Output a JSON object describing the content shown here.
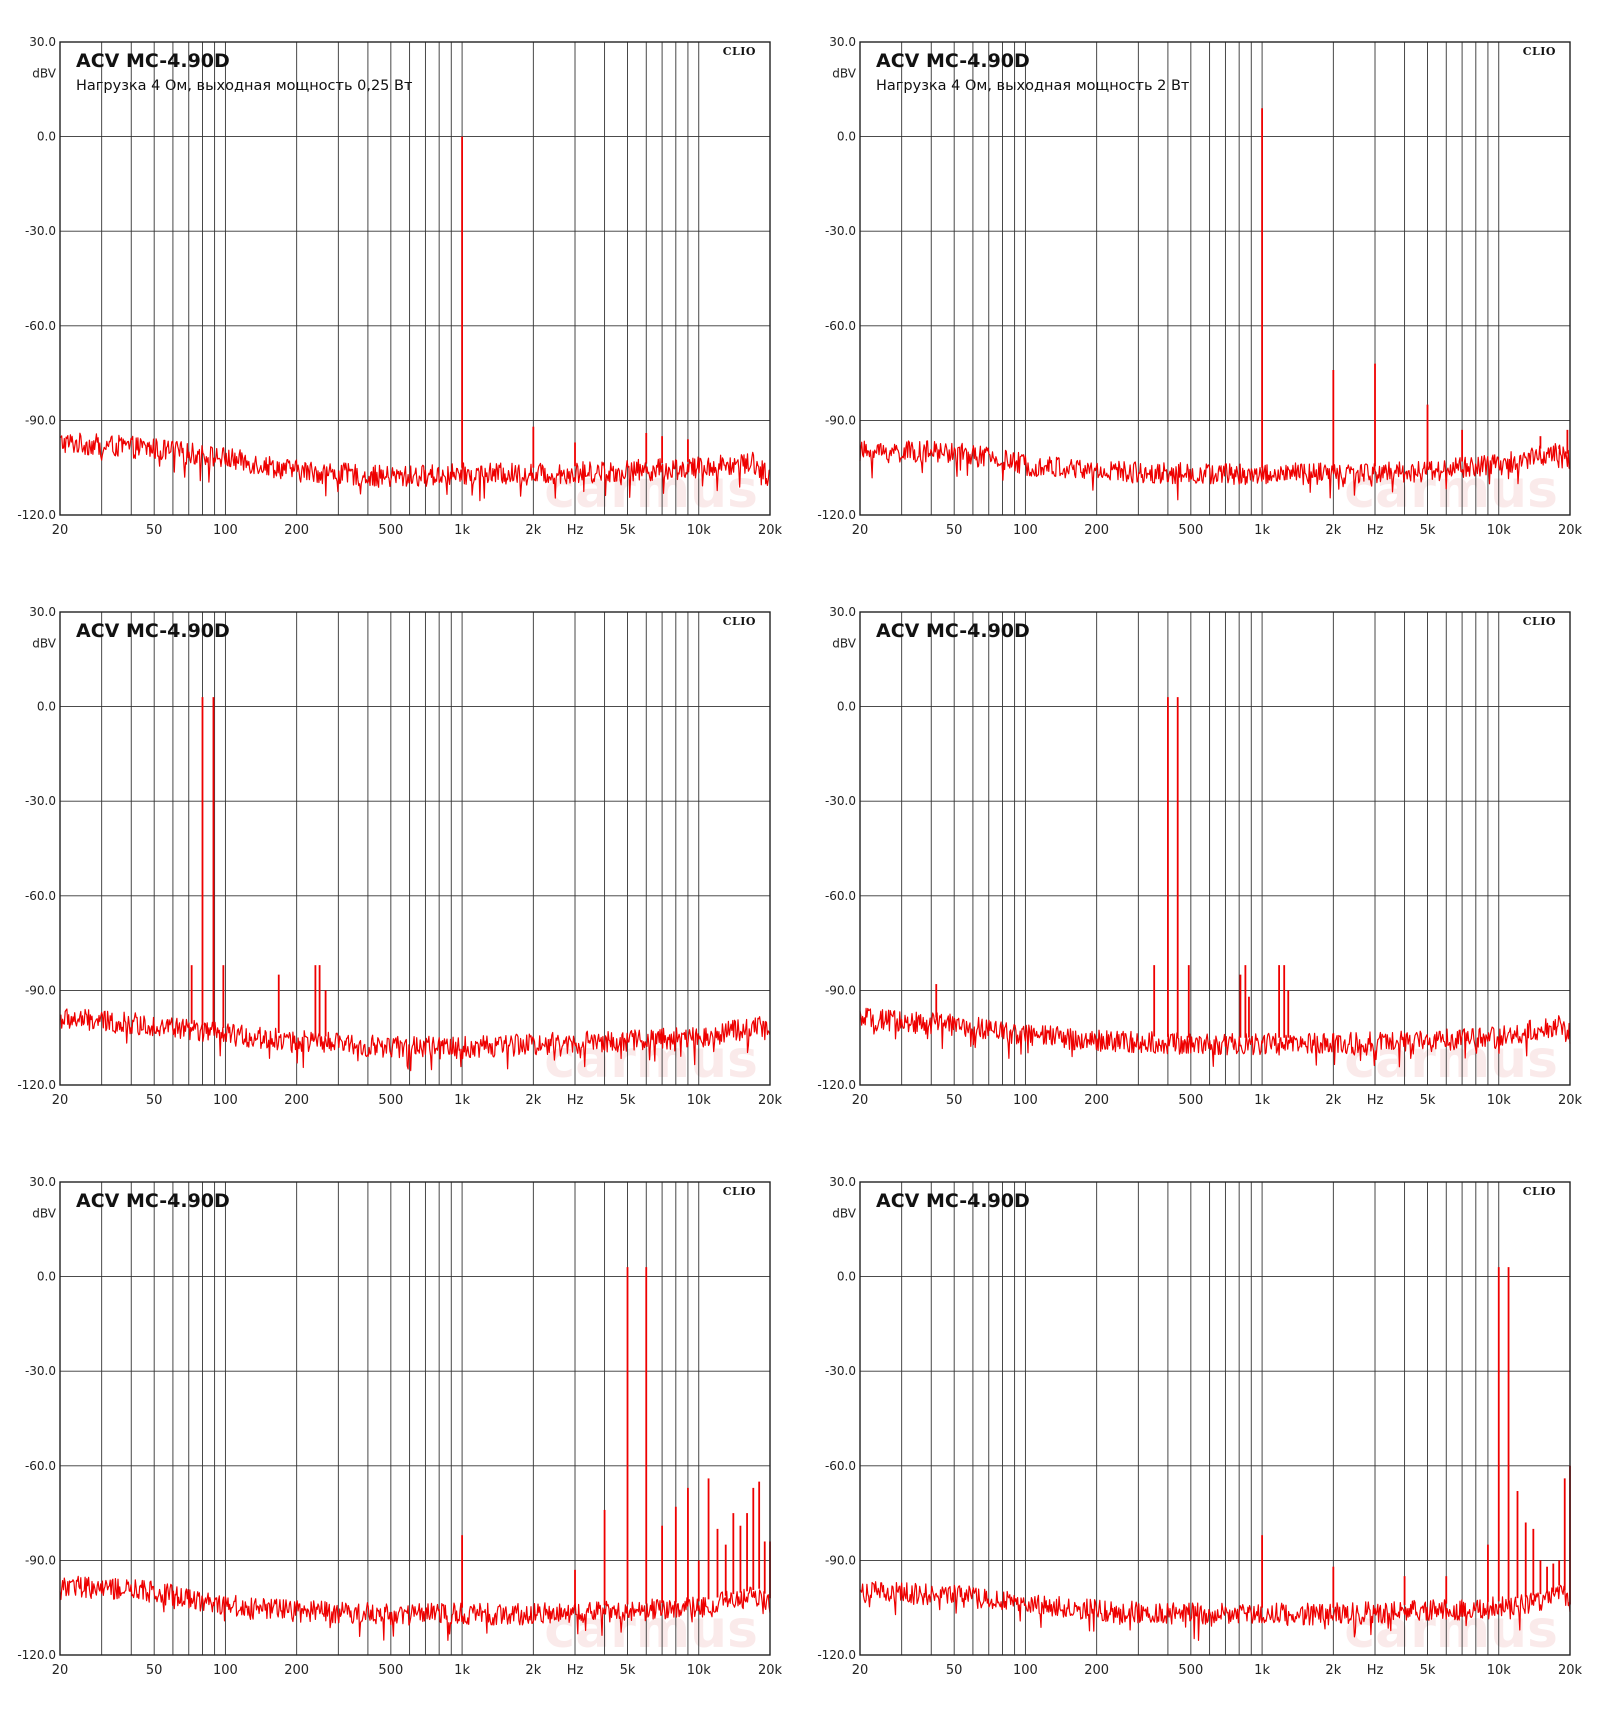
{
  "watermark": "carmus",
  "chart_data": [
    {
      "type": "line",
      "title": "ACV MC-4.90D",
      "subtitle": "Нагрузка 4 Ом, выходная мощность 0,25 Вт",
      "brand": "CLIO",
      "ylabel": "dBV",
      "xlabel": "Hz",
      "xscale": "log",
      "xlim": [
        20,
        20000
      ],
      "ylim": [
        -120,
        30
      ],
      "yticks": [
        "30.0",
        "0.0",
        "-30.0",
        "-60.0",
        "-90.0",
        "-120.0"
      ],
      "xticks": [
        "20",
        "50",
        "100",
        "200",
        "500",
        "1k",
        "2k",
        "Hz",
        "5k",
        "10k",
        "20k"
      ],
      "grid": true,
      "series": [
        {
          "name": "spectrum",
          "color": "#ee0000"
        }
      ],
      "noise_floor": [
        [
          20,
          -97
        ],
        [
          50,
          -99
        ],
        [
          100,
          -102
        ],
        [
          200,
          -106
        ],
        [
          500,
          -108
        ],
        [
          1000,
          -107
        ],
        [
          2000,
          -107
        ],
        [
          5000,
          -106
        ],
        [
          10000,
          -105
        ],
        [
          17000,
          -103
        ],
        [
          20000,
          -108
        ]
      ],
      "peaks": [
        [
          1000,
          0
        ],
        [
          2000,
          -92
        ],
        [
          3000,
          -97
        ],
        [
          6000,
          -94
        ],
        [
          7000,
          -95
        ],
        [
          9000,
          -96
        ]
      ]
    },
    {
      "type": "line",
      "title": "ACV MC-4.90D",
      "subtitle": "Нагрузка 4 Ом, выходная мощность 2 Вт",
      "brand": "CLIO",
      "ylabel": "dBV",
      "xlabel": "Hz",
      "xscale": "log",
      "xlim": [
        20,
        20000
      ],
      "ylim": [
        -120,
        30
      ],
      "yticks": [
        "30.0",
        "0.0",
        "-30.0",
        "-60.0",
        "-90.0",
        "-120.0"
      ],
      "xticks": [
        "20",
        "50",
        "100",
        "200",
        "500",
        "1k",
        "2k",
        "Hz",
        "5k",
        "10k",
        "20k"
      ],
      "grid": true,
      "series": [
        {
          "name": "spectrum",
          "color": "#ee0000"
        }
      ],
      "noise_floor": [
        [
          20,
          -100
        ],
        [
          50,
          -100
        ],
        [
          100,
          -104
        ],
        [
          200,
          -106
        ],
        [
          500,
          -107
        ],
        [
          1000,
          -107
        ],
        [
          2000,
          -107
        ],
        [
          5000,
          -106
        ],
        [
          10000,
          -104
        ],
        [
          17000,
          -100
        ],
        [
          20000,
          -103
        ]
      ],
      "peaks": [
        [
          1000,
          9
        ],
        [
          2000,
          -74
        ],
        [
          3000,
          -72
        ],
        [
          5000,
          -85
        ],
        [
          7000,
          -93
        ],
        [
          15000,
          -95
        ],
        [
          18000,
          -98
        ],
        [
          19500,
          -93
        ]
      ]
    },
    {
      "type": "line",
      "title": "ACV MC-4.90D",
      "subtitle": "",
      "brand": "CLIO",
      "ylabel": "dBV",
      "xlabel": "Hz",
      "xscale": "log",
      "xlim": [
        20,
        20000
      ],
      "ylim": [
        -120,
        30
      ],
      "yticks": [
        "30.0",
        "0.0",
        "-30.0",
        "-60.0",
        "-90.0",
        "-120.0"
      ],
      "xticks": [
        "20",
        "50",
        "100",
        "200",
        "500",
        "1k",
        "2k",
        "Hz",
        "5k",
        "10k",
        "20k"
      ],
      "grid": true,
      "series": [
        {
          "name": "spectrum",
          "color": "#ee0000"
        }
      ],
      "noise_floor": [
        [
          20,
          -99
        ],
        [
          50,
          -101
        ],
        [
          100,
          -104
        ],
        [
          200,
          -106
        ],
        [
          500,
          -108
        ],
        [
          1000,
          -108
        ],
        [
          2000,
          -107
        ],
        [
          5000,
          -106
        ],
        [
          10000,
          -105
        ],
        [
          18000,
          -101
        ],
        [
          20000,
          -104
        ]
      ],
      "peaks": [
        [
          72,
          -82
        ],
        [
          80,
          3
        ],
        [
          89,
          3
        ],
        [
          98,
          -82
        ],
        [
          168,
          -85
        ],
        [
          240,
          -82
        ],
        [
          250,
          -82
        ],
        [
          265,
          -90
        ]
      ]
    },
    {
      "type": "line",
      "title": "ACV MC-4.90D",
      "subtitle": "",
      "brand": "CLIO",
      "ylabel": "dBV",
      "xlabel": "Hz",
      "xscale": "log",
      "xlim": [
        20,
        20000
      ],
      "ylim": [
        -120,
        30
      ],
      "yticks": [
        "30.0",
        "0.0",
        "-30.0",
        "-60.0",
        "-90.0",
        "-120.0"
      ],
      "xticks": [
        "20",
        "50",
        "100",
        "200",
        "500",
        "1k",
        "2k",
        "Hz",
        "5k",
        "10k",
        "20k"
      ],
      "grid": true,
      "series": [
        {
          "name": "spectrum",
          "color": "#ee0000"
        }
      ],
      "noise_floor": [
        [
          20,
          -99
        ],
        [
          50,
          -101
        ],
        [
          100,
          -104
        ],
        [
          200,
          -106
        ],
        [
          500,
          -107
        ],
        [
          1000,
          -107
        ],
        [
          2000,
          -107
        ],
        [
          5000,
          -106
        ],
        [
          10000,
          -105
        ],
        [
          18000,
          -101
        ],
        [
          20000,
          -104
        ]
      ],
      "peaks": [
        [
          42,
          -88
        ],
        [
          350,
          -82
        ],
        [
          400,
          3
        ],
        [
          440,
          3
        ],
        [
          490,
          -82
        ],
        [
          810,
          -85
        ],
        [
          850,
          -82
        ],
        [
          880,
          -92
        ],
        [
          1180,
          -82
        ],
        [
          1240,
          -82
        ],
        [
          1290,
          -90
        ]
      ]
    },
    {
      "type": "line",
      "title": "ACV MC-4.90D",
      "subtitle": "",
      "brand": "CLIO",
      "ylabel": "dBV",
      "xlabel": "Hz",
      "xscale": "log",
      "xlim": [
        20,
        20000
      ],
      "ylim": [
        -120,
        30
      ],
      "yticks": [
        "30.0",
        "0.0",
        "-30.0",
        "-60.0",
        "-90.0",
        "-120.0"
      ],
      "xticks": [
        "20",
        "50",
        "100",
        "200",
        "500",
        "1k",
        "2k",
        "Hz",
        "5k",
        "10k",
        "20k"
      ],
      "grid": true,
      "series": [
        {
          "name": "spectrum",
          "color": "#ee0000"
        }
      ],
      "noise_floor": [
        [
          20,
          -98
        ],
        [
          50,
          -100
        ],
        [
          100,
          -104
        ],
        [
          200,
          -106
        ],
        [
          500,
          -107
        ],
        [
          1000,
          -107
        ],
        [
          2000,
          -107
        ],
        [
          5000,
          -106
        ],
        [
          10000,
          -105
        ],
        [
          18000,
          -101
        ],
        [
          20000,
          -104
        ]
      ],
      "peaks": [
        [
          1000,
          -82
        ],
        [
          3000,
          -93
        ],
        [
          4000,
          -74
        ],
        [
          5000,
          3
        ],
        [
          6000,
          3
        ],
        [
          7000,
          -79
        ],
        [
          8000,
          -73
        ],
        [
          9000,
          -67
        ],
        [
          10000,
          -90
        ],
        [
          11000,
          -64
        ],
        [
          12000,
          -80
        ],
        [
          13000,
          -85
        ],
        [
          14000,
          -75
        ],
        [
          15000,
          -79
        ],
        [
          16000,
          -75
        ],
        [
          17000,
          -67
        ],
        [
          18000,
          -65
        ],
        [
          19000,
          -84
        ],
        [
          20000,
          -84
        ]
      ]
    },
    {
      "type": "line",
      "title": "ACV MC-4.90D",
      "subtitle": "",
      "brand": "CLIO",
      "ylabel": "dBV",
      "xlabel": "Hz",
      "xscale": "log",
      "xlim": [
        20,
        20000
      ],
      "ylim": [
        -120,
        30
      ],
      "yticks": [
        "30.0",
        "0.0",
        "-30.0",
        "-60.0",
        "-90.0",
        "-120.0"
      ],
      "xticks": [
        "20",
        "50",
        "100",
        "200",
        "500",
        "1k",
        "2k",
        "Hz",
        "5k",
        "10k",
        "20k"
      ],
      "grid": true,
      "series": [
        {
          "name": "spectrum",
          "color": "#ee0000"
        }
      ],
      "noise_floor": [
        [
          20,
          -100
        ],
        [
          50,
          -101
        ],
        [
          100,
          -104
        ],
        [
          200,
          -106
        ],
        [
          500,
          -107
        ],
        [
          1000,
          -107
        ],
        [
          2000,
          -107
        ],
        [
          5000,
          -106
        ],
        [
          10000,
          -105
        ],
        [
          17000,
          -102
        ],
        [
          18500,
          -99
        ],
        [
          20000,
          -106
        ]
      ],
      "peaks": [
        [
          1000,
          -82
        ],
        [
          2000,
          -92
        ],
        [
          4000,
          -95
        ],
        [
          6000,
          -95
        ],
        [
          9000,
          -85
        ],
        [
          10000,
          3
        ],
        [
          11000,
          3
        ],
        [
          12000,
          -68
        ],
        [
          13000,
          -78
        ],
        [
          14000,
          -80
        ],
        [
          15000,
          -90
        ],
        [
          16000,
          -92
        ],
        [
          17000,
          -91
        ],
        [
          18000,
          -90
        ],
        [
          19000,
          -64
        ],
        [
          20000,
          -60
        ]
      ]
    }
  ]
}
